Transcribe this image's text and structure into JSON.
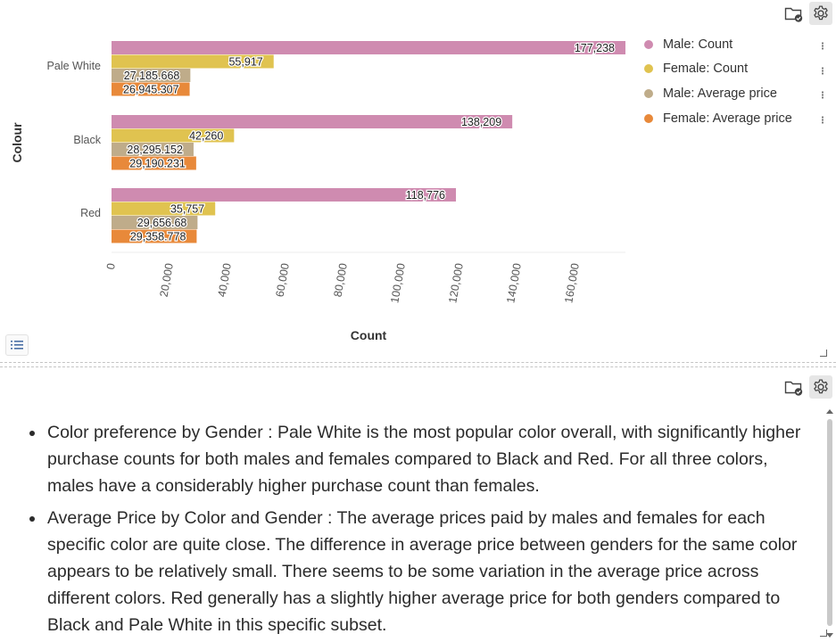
{
  "chart_panel": {
    "icons": {
      "folder": "folder-check-icon",
      "settings": "gear-icon",
      "list": "list-icon"
    }
  },
  "chart_data": {
    "type": "bar",
    "orientation": "horizontal",
    "categories": [
      "Pale White",
      "Black",
      "Red"
    ],
    "series": [
      {
        "name": "Male: Count",
        "color": "#cf8bb0",
        "values": [
          177238,
          138209,
          118776
        ],
        "labels": [
          "177,238",
          "138,209",
          "118,776"
        ]
      },
      {
        "name": "Female: Count",
        "color": "#e0c350",
        "values": [
          55917,
          42260,
          35757
        ],
        "labels": [
          "55,917",
          "42,260",
          "35,757"
        ]
      },
      {
        "name": "Male: Average price",
        "color": "#bfac8a",
        "values": [
          27185.668,
          28295.152,
          29656.68
        ],
        "labels": [
          "27,185.668",
          "28,295.152",
          "29,656.68"
        ]
      },
      {
        "name": "Female: Average price",
        "color": "#e8893a",
        "values": [
          26945.307,
          29190.231,
          29358.778
        ],
        "labels": [
          "26,945.307",
          "29,190.231",
          "29,358.778"
        ]
      }
    ],
    "xlabel": "Count",
    "ylabel": "Colour",
    "xlim": [
      0,
      177238
    ],
    "xticks": [
      0,
      20000,
      40000,
      60000,
      80000,
      100000,
      120000,
      140000,
      160000
    ],
    "xtick_labels": [
      "0",
      "20,000",
      "40,000",
      "60,000",
      "80,000",
      "100,000",
      "120,000",
      "140,000",
      "160,000"
    ],
    "grid": false,
    "legend_position": "right"
  },
  "insights": {
    "items": [
      "Color preference by Gender : Pale White is the most popular color overall, with significantly higher purchase counts for both males and females compared to Black and Red. For all three colors, males have a considerably higher purchase count than females.",
      "Average Price by Color and Gender : The average prices paid by males and females for each specific color are quite close. The difference in average price between genders for the same color appears to be relatively small. There seems to be some variation in the average price across different colors. Red generally has a slightly higher average price for both genders compared to Black and Pale White in this specific subset."
    ]
  }
}
